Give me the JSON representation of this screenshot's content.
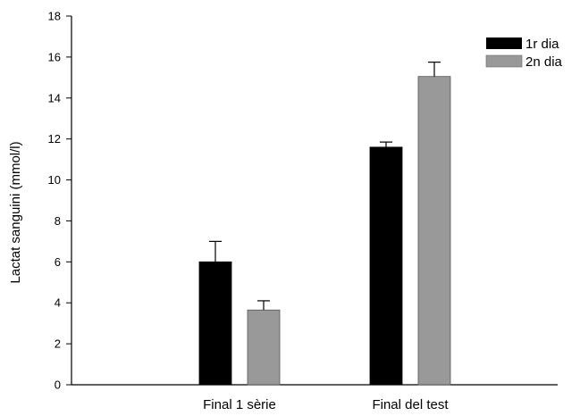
{
  "chart_data": {
    "type": "bar",
    "title": "",
    "xlabel": "",
    "ylabel": "Lactat sanguini (mmol/l)",
    "ylim": [
      0,
      18
    ],
    "yticks": [
      0,
      2,
      4,
      6,
      8,
      10,
      12,
      14,
      16,
      18
    ],
    "categories": [
      "Final 1 sèrie",
      "Final del test"
    ],
    "series": [
      {
        "name": "1r dia",
        "values": [
          6.0,
          11.6
        ],
        "errors": [
          1.0,
          0.25
        ],
        "color": "#000000"
      },
      {
        "name": "2n dia",
        "values": [
          3.65,
          15.05
        ],
        "errors": [
          0.45,
          0.7
        ],
        "color": "#999999"
      }
    ],
    "legend_position": "top-right",
    "grid": false
  }
}
